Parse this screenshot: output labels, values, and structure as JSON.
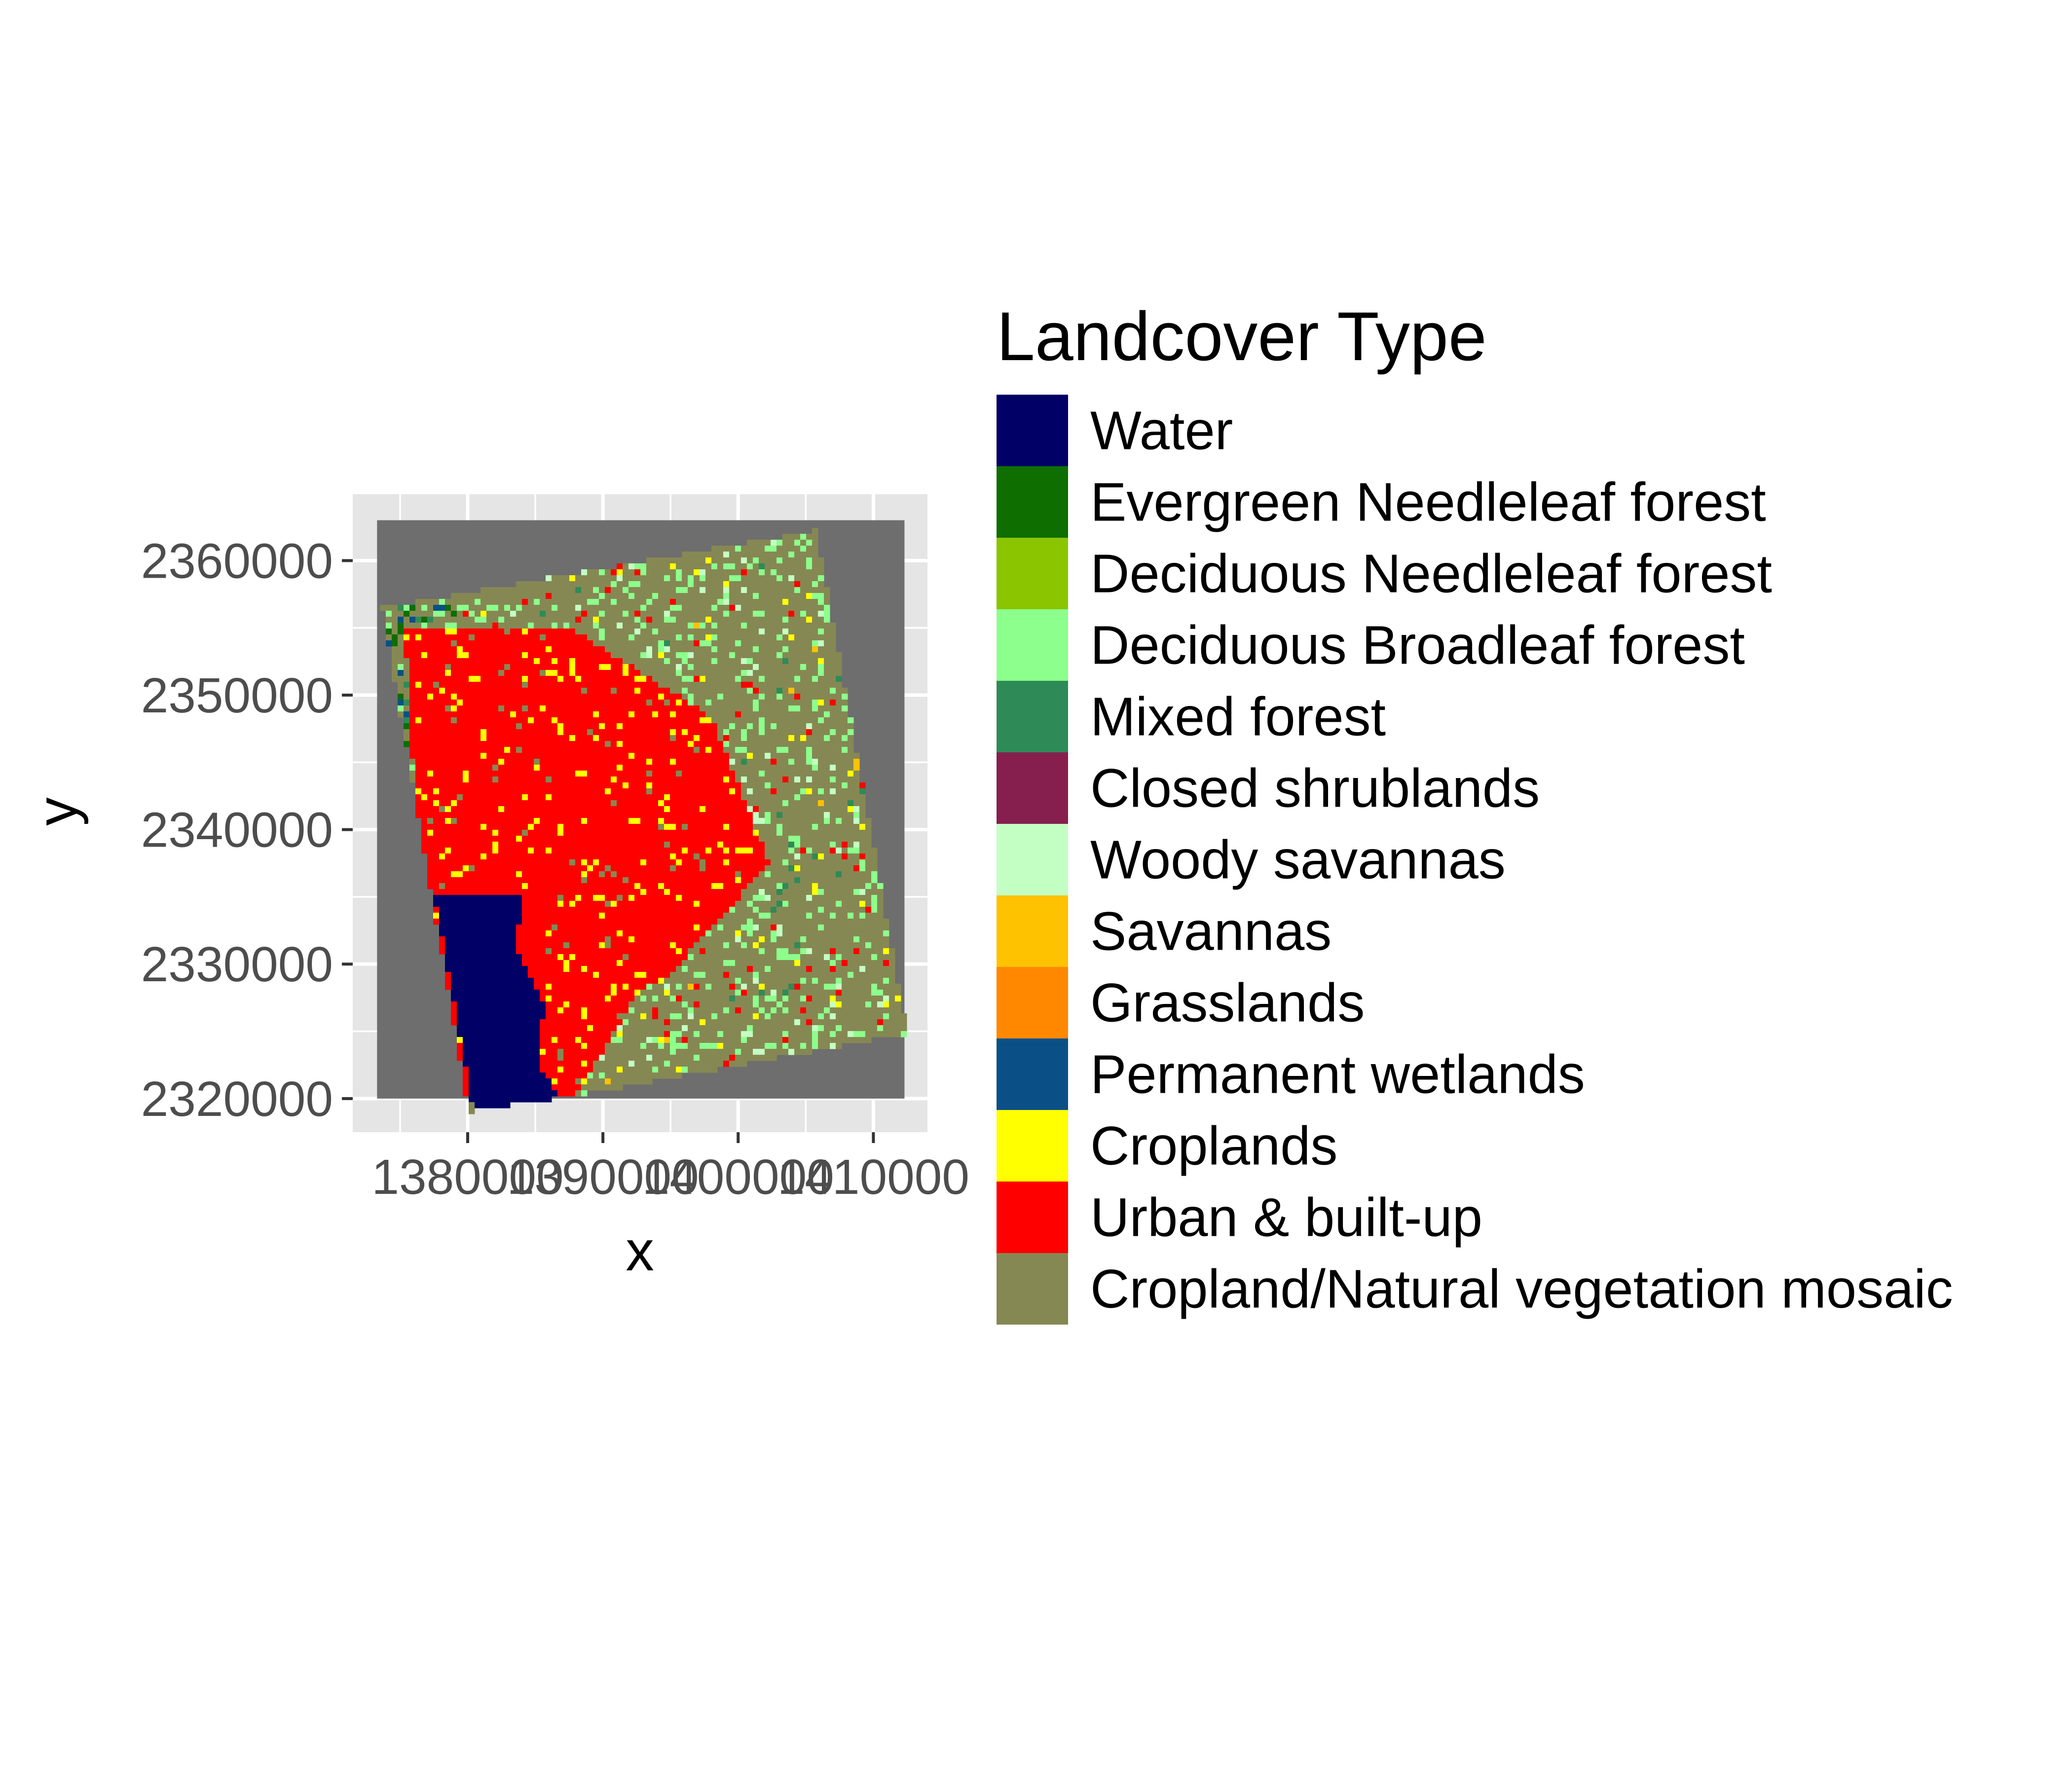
{
  "chart_data": {
    "type": "heatmap",
    "title": "",
    "xlabel": "x",
    "ylabel": "y",
    "x_ticks": [
      1380000,
      1390000,
      1400000,
      1410000
    ],
    "x_tick_labels": [
      "1380000",
      "1390000",
      "1400000",
      "1410000"
    ],
    "y_ticks": [
      2320000,
      2330000,
      2340000,
      2350000,
      2360000
    ],
    "y_tick_labels": [
      "2320000",
      "2330000",
      "2340000",
      "2350000",
      "2360000"
    ],
    "xlim": [
      1371500,
      1414000
    ],
    "ylim": [
      2317500,
      2365000
    ],
    "raster_extent": {
      "xmin": 1373300,
      "xmax": 1412300,
      "ymin": 2320000,
      "ymax": 2363000
    },
    "grid": true,
    "background_color": "#6e6e6e",
    "panel_color": "#e5e5e5",
    "legend": {
      "title": "Landcover Type",
      "position": "right",
      "entries": [
        {
          "label": "Water",
          "color": "#000066"
        },
        {
          "label": "Evergreen Needleleaf forest",
          "color": "#0e6e00"
        },
        {
          "label": "Deciduous Needleleaf forest",
          "color": "#8ac500"
        },
        {
          "label": "Deciduous Broadleaf forest",
          "color": "#8cff8c"
        },
        {
          "label": "Mixed forest",
          "color": "#2e8b57"
        },
        {
          "label": "Closed shrublands",
          "color": "#861f4e"
        },
        {
          "label": "Woody savannas",
          "color": "#c3ffc3"
        },
        {
          "label": "Savannas",
          "color": "#ffc200"
        },
        {
          "label": "Grasslands",
          "color": "#ff8800"
        },
        {
          "label": "Permanent wetlands",
          "color": "#0a5087"
        },
        {
          "label": "Croplands",
          "color": "#ffff00"
        },
        {
          "label": "Urban & built-up",
          "color": "#ff0000"
        },
        {
          "label": "Cropland/Natural vegetation mosaic",
          "color": "#868853"
        }
      ]
    }
  }
}
